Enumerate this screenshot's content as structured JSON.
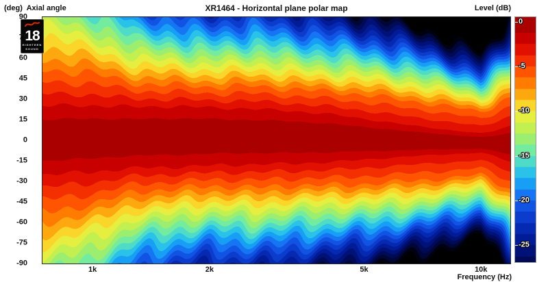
{
  "title": "XR1464 - Horizontal plane polar map",
  "header": {
    "y_unit_label": "(deg)",
    "y_name_label": "Axial angle",
    "level_label": "Level (dB)"
  },
  "x_axis": {
    "label": "Frequency (Hz)",
    "ticks": [
      {
        "label": "1k",
        "value": 1000
      },
      {
        "label": "2k",
        "value": 2000
      },
      {
        "label": "5k",
        "value": 5000
      },
      {
        "label": "10k",
        "value": 10000
      }
    ]
  },
  "y_axis": {
    "ticks": [
      {
        "label": "90",
        "value": 90
      },
      {
        "label": "75",
        "value": 75
      },
      {
        "label": "60",
        "value": 60
      },
      {
        "label": "45",
        "value": 45
      },
      {
        "label": "30",
        "value": 30
      },
      {
        "label": "15",
        "value": 15
      },
      {
        "label": "0",
        "value": 0
      },
      {
        "label": "-15",
        "value": -15
      },
      {
        "label": "-30",
        "value": -30
      },
      {
        "label": "-45",
        "value": -45
      },
      {
        "label": "-60",
        "value": -60
      },
      {
        "label": "-75",
        "value": -75
      },
      {
        "label": "-90",
        "value": -90
      }
    ]
  },
  "colorbar": {
    "range_db": [
      0.5,
      -26.9
    ],
    "ticks": [
      {
        "label": "0",
        "value": 0
      },
      {
        "label": "-5",
        "value": -5
      },
      {
        "label": "-10",
        "value": -10
      },
      {
        "label": "-15",
        "value": -15
      },
      {
        "label": "-20",
        "value": -20
      },
      {
        "label": "-25",
        "value": -25
      }
    ]
  },
  "logo": {
    "number": "18",
    "line1": "EIGHTEEN",
    "line2": "SOUND"
  },
  "chart_data": {
    "type": "heatmap",
    "title": "XR1464 - Horizontal plane polar map",
    "xlabel": "Frequency (Hz)",
    "ylabel": "Axial angle (deg)",
    "zlabel": "Level (dB)",
    "x_scale": "log",
    "freq_range_hz": [
      743,
      11900
    ],
    "angle_range_deg": [
      -90,
      90
    ],
    "level_range_db": [
      0,
      -30
    ],
    "band_step_db": 2.5,
    "sub_step_db": 1.25,
    "palette_db": [
      0,
      -2.5,
      -5,
      -7.5,
      -10,
      -12.5,
      -15,
      -17.5,
      -20,
      -22.5,
      -25,
      -27.5,
      -30
    ],
    "palette_hex": [
      "#9c0000",
      "#d80000",
      "#ff4000",
      "#ff9000",
      "#f8ee38",
      "#b0f058",
      "#60eab8",
      "#18b4f8",
      "#1460f0",
      "#0830c0",
      "#001488",
      "#000848",
      "#000000"
    ],
    "black_below_db": -30,
    "contour_levels_db": [
      -2.5,
      -6,
      -12,
      -18,
      -24,
      -30
    ],
    "profile_freqs_hz": [
      743,
      1000,
      1300,
      1600,
      2000,
      2600,
      3300,
      4200,
      5300,
      6700,
      8500,
      10000,
      10800,
      11900
    ],
    "half_width_deg": [
      [
        25.0,
        50,
        88,
        120,
        160,
        200
      ],
      [
        24.0,
        46,
        76,
        105,
        140,
        180
      ],
      [
        22.0,
        38,
        60,
        82,
        105,
        135
      ],
      [
        22.0,
        37,
        58,
        77,
        98,
        125
      ],
      [
        21.0,
        35,
        54,
        72,
        92,
        115
      ],
      [
        20.0,
        36,
        56,
        74,
        94,
        118
      ],
      [
        19.0,
        34,
        52,
        70,
        88,
        108
      ],
      [
        17.0,
        33,
        50,
        67,
        83,
        100
      ],
      [
        14.0,
        31,
        48,
        63,
        78,
        93
      ],
      [
        11.0,
        28,
        44,
        58,
        71,
        85
      ],
      [
        8.5,
        25,
        39,
        51,
        62,
        74
      ],
      [
        7.0,
        22,
        34,
        45,
        55,
        66
      ],
      [
        9.0,
        26,
        40,
        52,
        63,
        75
      ],
      [
        13.0,
        33,
        50,
        64,
        78,
        92
      ]
    ],
    "model": {
      "inner_exponent": 1.35,
      "bottom_asymmetry": 1.02,
      "center_offset_deg": {
        "amp": 3.0,
        "k": 1.0,
        "phase": 0.5
      },
      "wiggle_floor": 0.35,
      "wiggle": [
        {
          "amp": 0.045,
          "k": 25.1,
          "theta_k": 0.055,
          "phase_top": 0.0,
          "phase_bottom": 1.1
        },
        {
          "amp": 0.03,
          "k": 11.0,
          "theta_k": 0.11,
          "phase_top": 2.0,
          "phase_bottom": 4.0
        }
      ]
    }
  }
}
